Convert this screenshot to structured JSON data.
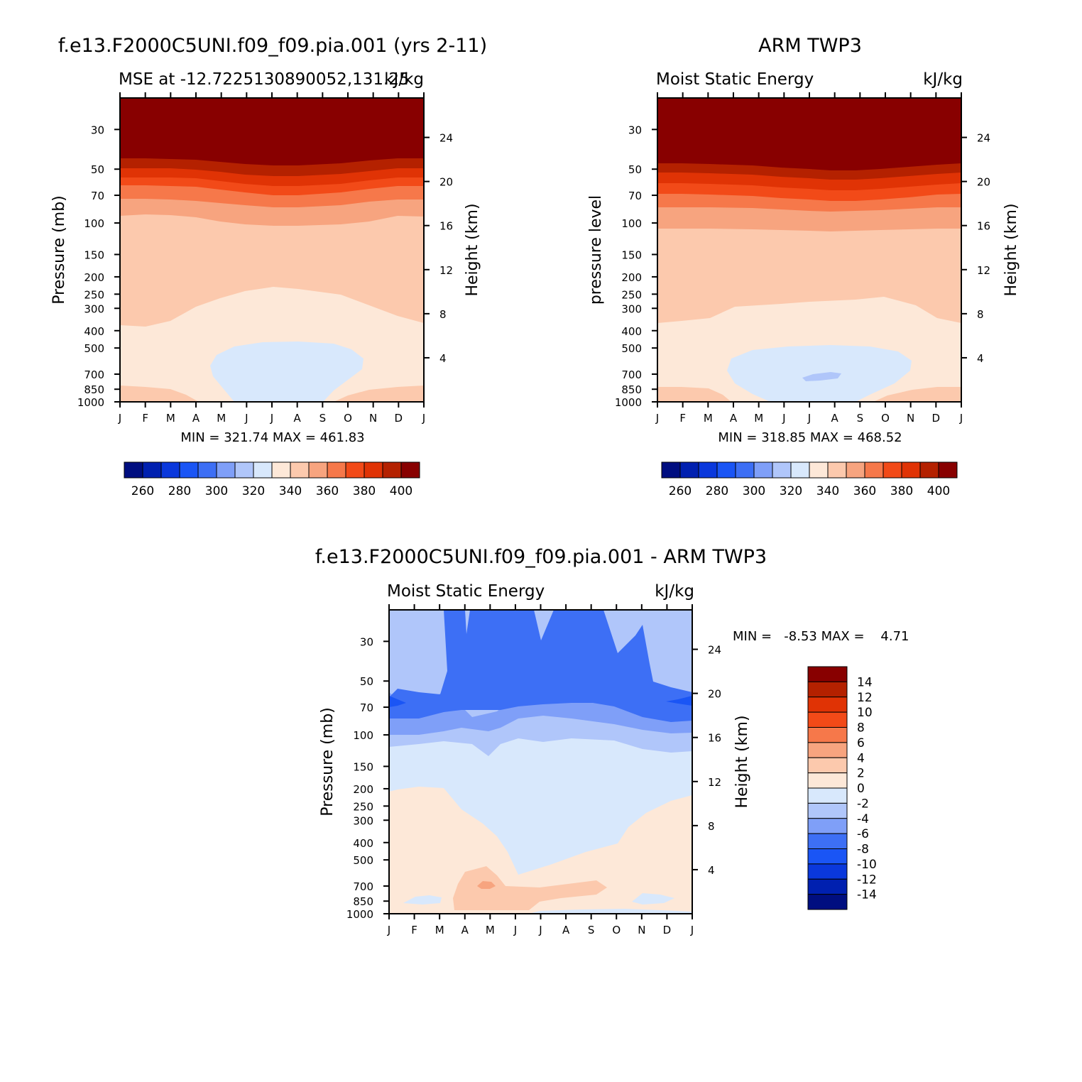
{
  "figure": {
    "page_background": "#ffffff"
  },
  "chart_data": [
    {
      "type": "heatmap",
      "id": "model",
      "title": "f.e13.F2000C5UNI.f09_f09.pia.001 (yrs 2-11)",
      "subtitle_left": "MSE at -12.7225130890052,131.25",
      "subtitle_right": "kJ/kg",
      "ylabel": "Pressure (mb)",
      "y2label": "Height (km)",
      "x_ticks": [
        "J",
        "F",
        "M",
        "A",
        "M",
        "J",
        "J",
        "A",
        "S",
        "O",
        "N",
        "D",
        "J"
      ],
      "y_ticks": [
        30,
        50,
        70,
        100,
        150,
        200,
        250,
        300,
        400,
        500,
        700,
        850,
        1000
      ],
      "y2_ticks": [
        24,
        20,
        16,
        12,
        8,
        4
      ],
      "ylim": [
        1000,
        20
      ],
      "y_scale": "log",
      "stats": "MIN = 321.74 MAX = 461.83",
      "min": 321.74,
      "max": 461.83,
      "colorbar": {
        "orientation": "horizontal",
        "labels": [
          "260",
          "280",
          "300",
          "320",
          "340",
          "360",
          "380",
          "400"
        ],
        "levels": [
          250,
          260,
          270,
          280,
          290,
          300,
          310,
          320,
          330,
          340,
          350,
          360,
          370,
          380,
          390,
          400,
          410
        ],
        "colors": [
          "#000e80",
          "#0020b0",
          "#0a38dc",
          "#1a55f5",
          "#3d6ff5",
          "#7f9ff8",
          "#b0c6fa",
          "#d8e8fc",
          "#fde8d8",
          "#fcc9ad",
          "#f7a47f",
          "#f6784a",
          "#f24a18",
          "#e03305",
          "#b42100",
          "#880000"
        ]
      },
      "profile": {
        "months": [
          "Jan",
          "Feb",
          "Mar",
          "Apr",
          "May",
          "Jun",
          "Jul",
          "Aug",
          "Sep",
          "Oct",
          "Nov",
          "Dec",
          "Jan"
        ],
        "p_400_contour_340": [
          395,
          395,
          380,
          330,
          300,
          280,
          260,
          265,
          280,
          310,
          360,
          395,
          395
        ],
        "p_bubble_top": [
          null,
          null,
          null,
          null,
          null,
          480,
          470,
          470,
          480,
          null,
          null,
          null,
          null
        ],
        "note_unit": "kJ/kg"
      }
    },
    {
      "type": "heatmap",
      "id": "obs",
      "title": "ARM TWP3",
      "subtitle_left": "Moist Static Energy",
      "subtitle_right": "kJ/kg",
      "ylabel": "pressure level",
      "y2label": "Height (km)",
      "x_ticks": [
        "J",
        "F",
        "M",
        "A",
        "M",
        "J",
        "J",
        "A",
        "S",
        "O",
        "N",
        "D",
        "J"
      ],
      "y_ticks": [
        30,
        50,
        70,
        100,
        150,
        200,
        250,
        300,
        400,
        500,
        700,
        850,
        1000
      ],
      "y2_ticks": [
        24,
        20,
        16,
        12,
        8,
        4
      ],
      "ylim": [
        1000,
        20
      ],
      "y_scale": "log",
      "stats": "MIN = 318.85 MAX = 468.52",
      "min": 318.85,
      "max": 468.52,
      "colorbar": {
        "orientation": "horizontal",
        "labels": [
          "260",
          "280",
          "300",
          "320",
          "340",
          "360",
          "380",
          "400"
        ],
        "levels": [
          250,
          260,
          270,
          280,
          290,
          300,
          310,
          320,
          330,
          340,
          350,
          360,
          370,
          380,
          390,
          400,
          410
        ],
        "colors": [
          "#000e80",
          "#0020b0",
          "#0a38dc",
          "#1a55f5",
          "#3d6ff5",
          "#7f9ff8",
          "#b0c6fa",
          "#d8e8fc",
          "#fde8d8",
          "#fcc9ad",
          "#f7a47f",
          "#f6784a",
          "#f24a18",
          "#e03305",
          "#b42100",
          "#880000"
        ]
      }
    },
    {
      "type": "heatmap",
      "id": "diff",
      "title": "f.e13.F2000C5UNI.f09_f09.pia.001 - ARM TWP3",
      "subtitle_left": "Moist Static Energy",
      "subtitle_right": "kJ/kg",
      "ylabel": "Pressure (mb)",
      "y2label": "Height (km)",
      "x_ticks": [
        "J",
        "F",
        "M",
        "A",
        "M",
        "J",
        "J",
        "A",
        "S",
        "O",
        "N",
        "D",
        "J"
      ],
      "y_ticks": [
        30,
        50,
        70,
        100,
        150,
        200,
        250,
        300,
        400,
        500,
        700,
        850,
        1000
      ],
      "y2_ticks": [
        24,
        20,
        16,
        12,
        8,
        4
      ],
      "ylim": [
        1000,
        20
      ],
      "y_scale": "log",
      "stats": "MIN =   -8.53 MAX =    4.71",
      "min": -8.53,
      "max": 4.71,
      "colorbar": {
        "orientation": "vertical",
        "labels": [
          "14",
          "12",
          "10",
          "8",
          "6",
          "4",
          "2",
          "0",
          "-2",
          "-4",
          "-6",
          "-8",
          "-10",
          "-12",
          "-14"
        ],
        "levels": [
          -16,
          -14,
          -12,
          -10,
          -8,
          -6,
          -4,
          -2,
          0,
          2,
          4,
          6,
          8,
          10,
          12,
          14,
          16
        ],
        "colors": [
          "#880000",
          "#b42100",
          "#e03305",
          "#f24a18",
          "#f6784a",
          "#f7a47f",
          "#fcc9ad",
          "#fde8d8",
          "#d8e8fc",
          "#b0c6fa",
          "#7f9ff8",
          "#3d6ff5",
          "#1a55f5",
          "#0a38dc",
          "#0020b0",
          "#000e80"
        ]
      }
    }
  ]
}
